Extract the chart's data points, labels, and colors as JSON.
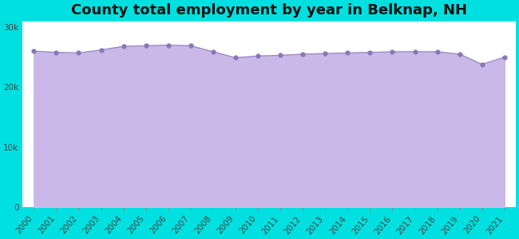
{
  "title": "County total employment by year in Belknap, NH",
  "years": [
    2000,
    2001,
    2002,
    2003,
    2004,
    2005,
    2006,
    2007,
    2008,
    2009,
    2010,
    2011,
    2012,
    2013,
    2014,
    2015,
    2016,
    2017,
    2018,
    2019,
    2020,
    2021
  ],
  "values": [
    26000,
    25800,
    25700,
    26200,
    26800,
    26900,
    27000,
    26900,
    25900,
    24900,
    25200,
    25300,
    25500,
    25600,
    25700,
    25800,
    25900,
    25900,
    25900,
    25500,
    23800,
    25000
  ],
  "ylim": [
    0,
    31000
  ],
  "yticks": [
    0,
    10000,
    20000,
    30000
  ],
  "ytick_labels": [
    "0",
    "10k",
    "20k",
    "30k"
  ],
  "line_color": "#9b8ec4",
  "fill_color": "#c9b8e8",
  "marker_color": "#8878b8",
  "plot_bg_color": "#ffffff",
  "outer_background": "#00e0e0",
  "title_fontsize": 13,
  "tick_label_color": "#444444",
  "tick_label_fontsize": 7.5
}
